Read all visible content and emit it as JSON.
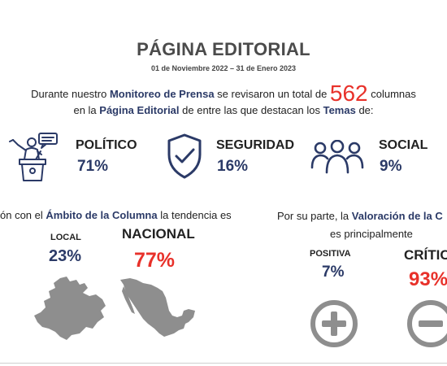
{
  "header": {
    "title": "PÁGINA EDITORIAL",
    "date_range": "01 de Noviembre 2022 – 31 de Enero 2023"
  },
  "intro": {
    "line1_pre": "Durante nuestro ",
    "line1_highlight": "Monitoreo de Prensa",
    "line1_mid": " se revisaron un total de ",
    "total": "562",
    "line1_post": " columnas",
    "line2_pre": "en la ",
    "line2_highlight": "Página Editorial",
    "line2_mid": " de entre las que destacan los ",
    "line2_highlight2": "Temas",
    "line2_post": " de:"
  },
  "topics": [
    {
      "label": "POLÍTICO",
      "pct": "71%",
      "icon": "podium-speaker-icon"
    },
    {
      "label": "SEGURIDAD",
      "pct": "16%",
      "icon": "shield-check-icon"
    },
    {
      "label": "SOCIAL",
      "pct": "9%",
      "icon": "people-group-icon"
    }
  ],
  "ambito": {
    "text_pre": "ón con el ",
    "text_highlight": "Ámbito de la Columna",
    "text_post": " la tendencia es",
    "local_label": "LOCAL",
    "local_pct": "23%",
    "national_label": "NACIONAL",
    "national_pct": "77%",
    "local_map_icon": "jalisco-map-icon",
    "national_map_icon": "mexico-map-icon"
  },
  "valoracion": {
    "text_pre": "Por su parte, la ",
    "text_highlight": "Valoración de la C",
    "text_line2": "es principalmente",
    "positive_label": "POSITIVA",
    "positive_pct": "7%",
    "critical_label": "CRÍTIC",
    "critical_pct": "93%",
    "positive_icon": "plus-circle-icon",
    "critical_icon": "minus-circle-icon"
  },
  "colors": {
    "navy": "#2b3a67",
    "red": "#e8312a",
    "gray": "#8e8e8e"
  }
}
